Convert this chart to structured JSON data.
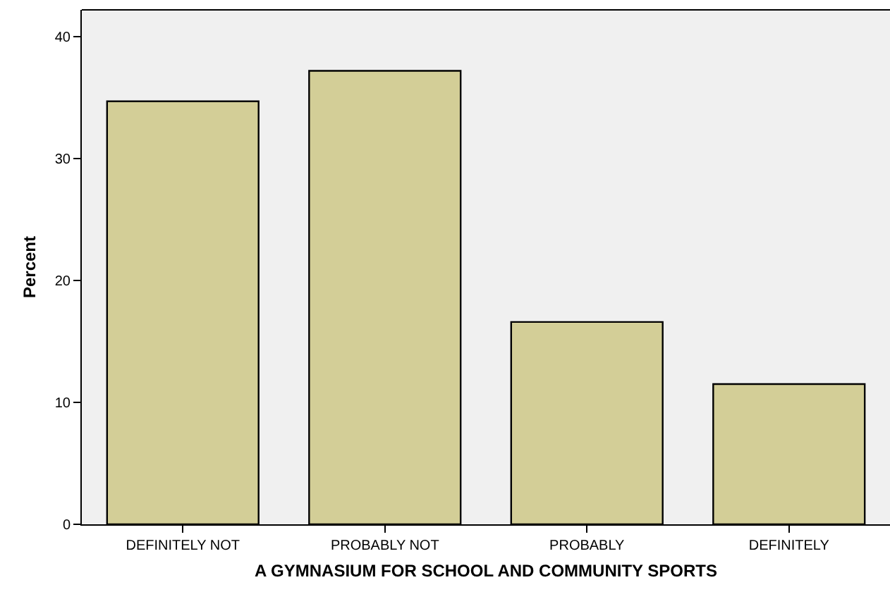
{
  "chart_data": {
    "type": "bar",
    "xlabel": "A GYMNASIUM FOR SCHOOL AND COMMUNITY SPORTS",
    "ylabel": "Percent",
    "categories": [
      "DEFINITELY NOT",
      "PROBABLY NOT",
      "PROBABLY",
      "DEFINITELY"
    ],
    "values": [
      34.7,
      37.2,
      16.6,
      11.5
    ],
    "color": "#d3ce97",
    "ylim": [
      0,
      42.2
    ],
    "yticks": [
      0,
      10,
      20,
      30,
      40
    ]
  }
}
